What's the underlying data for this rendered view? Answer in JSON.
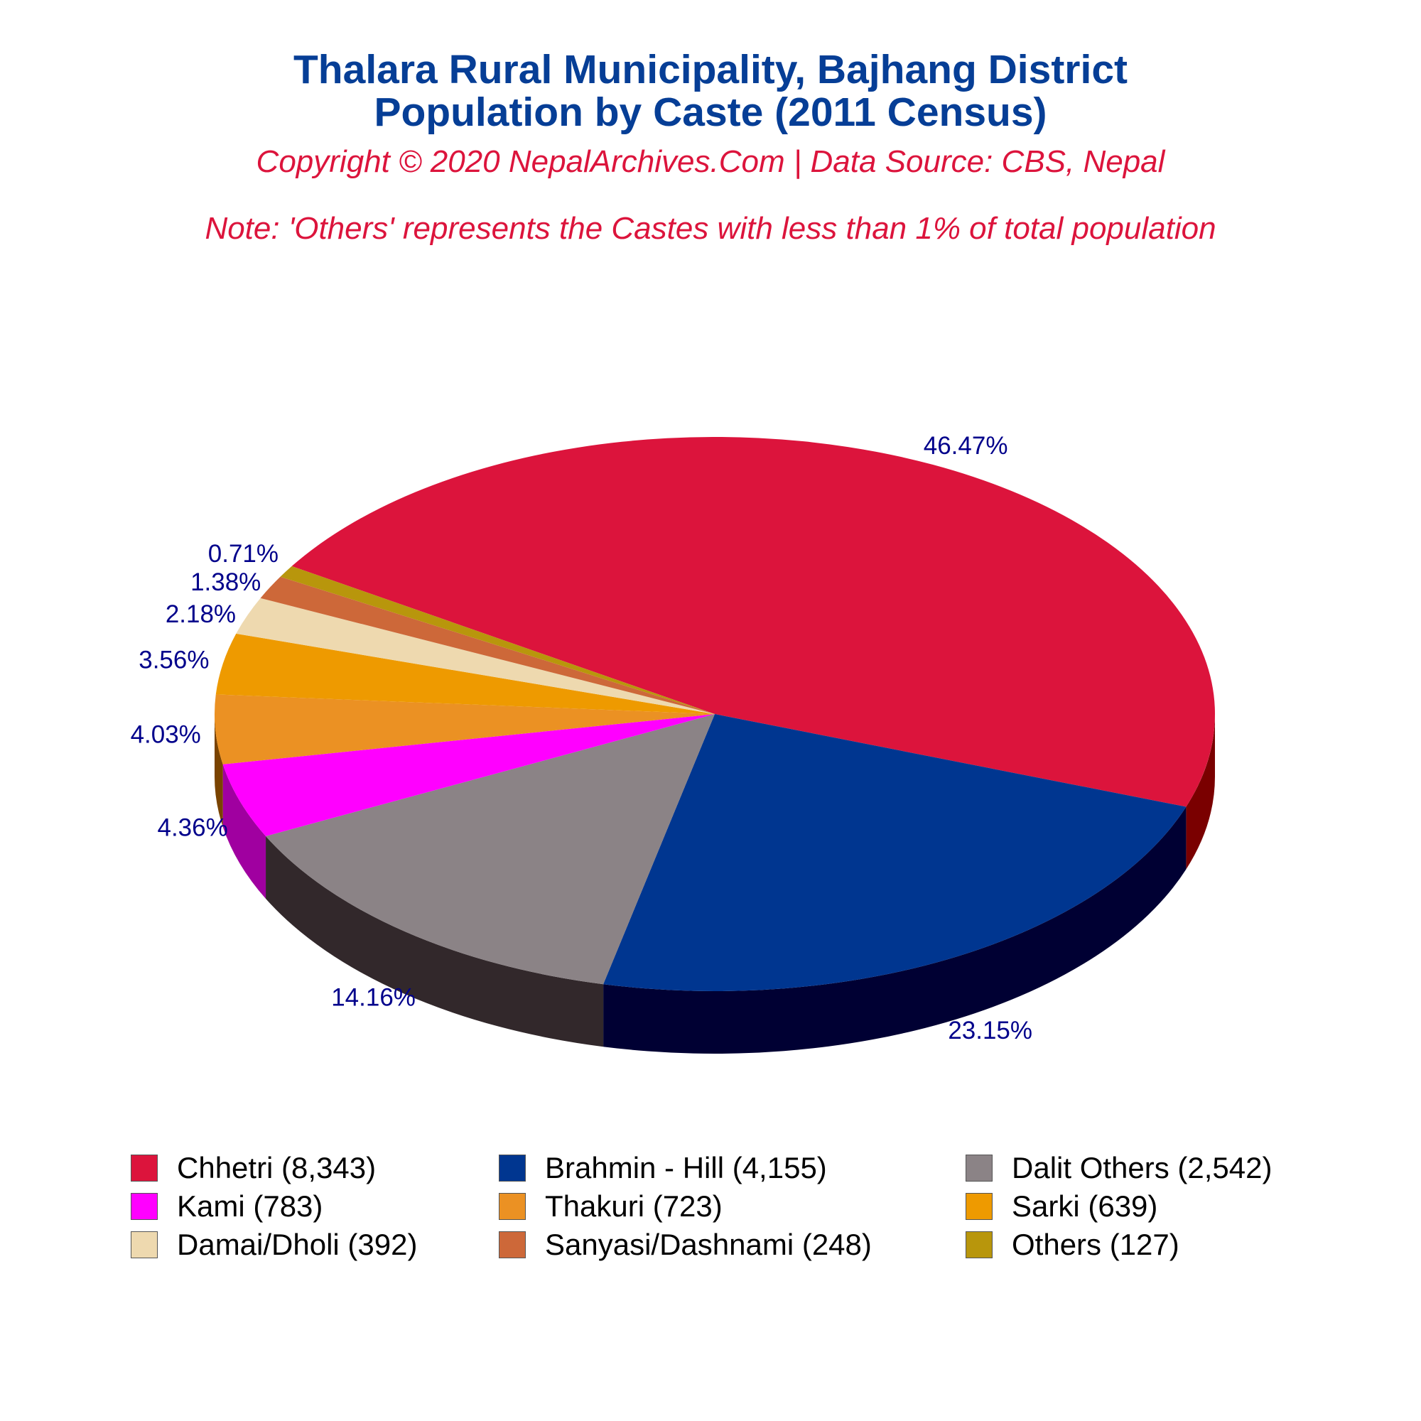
{
  "header": {
    "title_line1": "Thalara Rural Municipality, Bajhang District",
    "title_line2": "Population by Caste (2011 Census)",
    "subtitle": "Copyright © 2020 NepalArchives.Com | Data Source: CBS, Nepal",
    "note": "Note: 'Others' represents the Castes with less than 1% of total population"
  },
  "chart_data": {
    "type": "pie",
    "style": "3d",
    "title": "Thalara Rural Municipality, Bajhang District Population by Caste (2011 Census)",
    "slices": [
      {
        "label": "Chhetri",
        "value": 8343,
        "percent_label": "46.47%",
        "legend_label": "Chhetri (8,343)",
        "color": "#dc143c",
        "side_color": "#7a0000"
      },
      {
        "label": "Brahmin - Hill",
        "value": 4155,
        "percent_label": "23.15%",
        "legend_label": "Brahmin - Hill (4,155)",
        "color": "#003690",
        "side_color": "#000033"
      },
      {
        "label": "Dalit Others",
        "value": 2542,
        "percent_label": "14.16%",
        "legend_label": "Dalit Others (2,542)",
        "color": "#8b8386",
        "side_color": "#32282b"
      },
      {
        "label": "Kami",
        "value": 783,
        "percent_label": "4.36%",
        "legend_label": "Kami (783)",
        "color": "#ff00ff",
        "side_color": "#a000a0"
      },
      {
        "label": "Thakuri",
        "value": 723,
        "percent_label": "4.03%",
        "legend_label": "Thakuri (723)",
        "color": "#eb9123",
        "side_color": "#7a4300"
      },
      {
        "label": "Sarki",
        "value": 639,
        "percent_label": "3.56%",
        "legend_label": "Sarki (639)",
        "color": "#ee9a00",
        "side_color": "#7a4f00"
      },
      {
        "label": "Damai/Dholi",
        "value": 392,
        "percent_label": "2.18%",
        "legend_label": "Damai/Dholi (392)",
        "color": "#eed9af",
        "side_color": "#8a7a5a"
      },
      {
        "label": "Sanyasi/Dashnami",
        "value": 248,
        "percent_label": "1.38%",
        "legend_label": "Sanyasi/Dashnami (248)",
        "color": "#cd6839",
        "side_color": "#6b2f12"
      },
      {
        "label": "Others",
        "value": 127,
        "percent_label": "0.71%",
        "legend_label": "Others (127)",
        "color": "#b8960c",
        "side_color": "#5c4a00"
      }
    ],
    "legend_position": "bottom",
    "legend_columns": 3
  }
}
